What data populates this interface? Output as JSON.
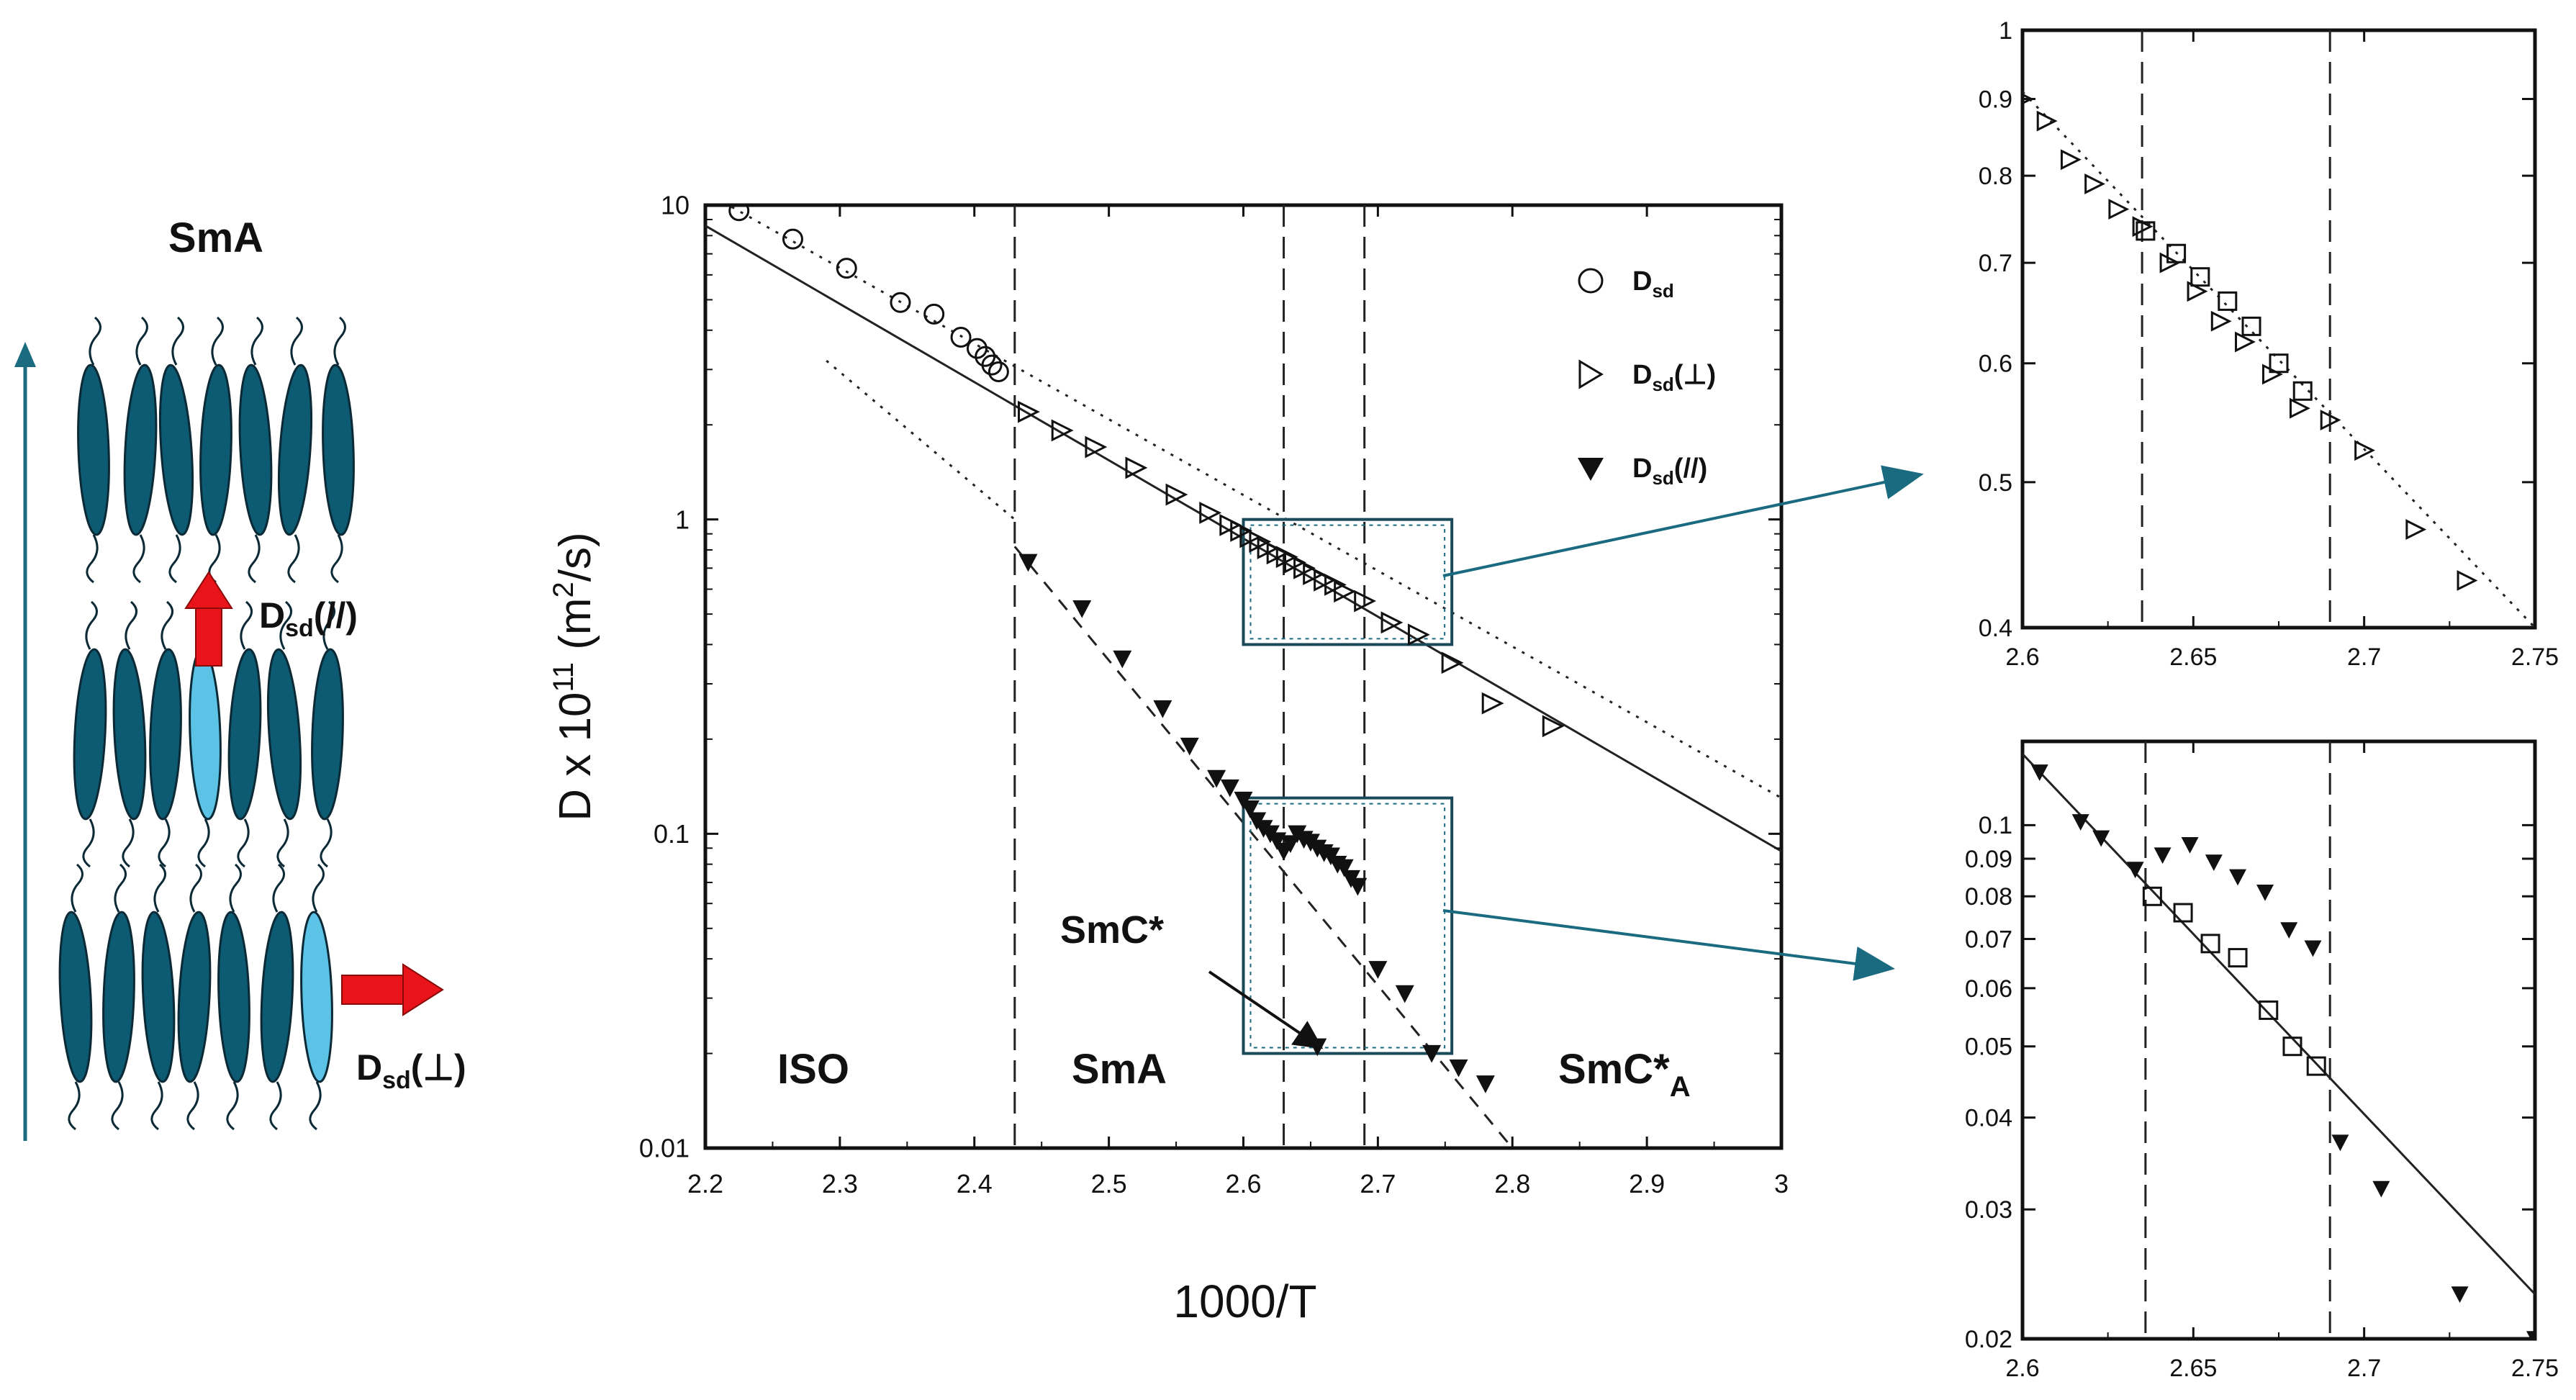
{
  "schematic": {
    "title": "SmA",
    "label_parallel_main": "D",
    "label_parallel_sub": "sd",
    "label_parallel_tail": "(//)",
    "label_perp_main": "D",
    "label_perp_sub": "sd",
    "label_perp_tail": "(⊥)",
    "molecule_color": "#0d5a73",
    "highlight_color": "#5cc3e6",
    "arrow_color": "#e8141a"
  },
  "chart_data": [
    {
      "type": "scatter",
      "id": "main",
      "xlabel": "1000/T",
      "ylabel": "D x 10",
      "ylabel_sup": "11",
      "ylabel_tail": " (m",
      "ylabel_sup2": "2",
      "ylabel_end": "/s)",
      "xlim": [
        2.2,
        3.0
      ],
      "ylim": [
        0.01,
        10
      ],
      "yscale": "log",
      "x_ticks": [
        "2.2",
        "2.3",
        "2.4",
        "2.5",
        "2.6",
        "2.7",
        "2.8",
        "2.9",
        "3"
      ],
      "y_ticks": [
        "0.01",
        "0.1",
        "1",
        "10"
      ],
      "phase_boundaries": [
        2.43,
        2.63,
        2.69
      ],
      "phase_labels": [
        "ISO",
        "SmA",
        "SmC*",
        "SmC*A"
      ],
      "annotation": "SmC*",
      "legend": [
        {
          "marker": "circle",
          "main": "D",
          "sub": "sd",
          "tail": ""
        },
        {
          "marker": "triangle-right",
          "main": "D",
          "sub": "sd",
          "tail": "(⊥)"
        },
        {
          "marker": "triangle-down-filled",
          "main": "D",
          "sub": "sd",
          "tail": "(//)"
        }
      ],
      "legend_position": "top-right",
      "series": [
        {
          "marker": "circle",
          "x": [
            2.225,
            2.265,
            2.305,
            2.345,
            2.37,
            2.39,
            2.402,
            2.408,
            2.413,
            2.418
          ],
          "y": [
            9.6,
            7.8,
            6.3,
            4.9,
            4.5,
            3.8,
            3.5,
            3.3,
            3.1,
            2.95
          ]
        },
        {
          "marker": "triangle-right",
          "x": [
            2.44,
            2.465,
            2.49,
            2.52,
            2.55,
            2.575,
            2.59,
            2.598,
            2.605,
            2.612,
            2.618,
            2.625,
            2.632,
            2.638,
            2.645,
            2.652,
            2.66,
            2.668,
            2.675,
            2.69,
            2.71,
            2.73,
            2.755,
            2.785,
            2.83
          ],
          "y": [
            2.2,
            1.92,
            1.7,
            1.46,
            1.2,
            1.05,
            0.96,
            0.92,
            0.88,
            0.85,
            0.81,
            0.78,
            0.76,
            0.73,
            0.7,
            0.67,
            0.64,
            0.62,
            0.59,
            0.55,
            0.47,
            0.43,
            0.35,
            0.26,
            0.22
          ]
        },
        {
          "marker": "triangle-down-filled",
          "x": [
            2.44,
            2.48,
            2.51,
            2.54,
            2.56,
            2.58,
            2.59,
            2.6,
            2.605,
            2.61,
            2.615,
            2.62,
            2.625,
            2.63,
            2.635,
            2.64,
            2.645,
            2.65,
            2.655,
            2.66,
            2.665,
            2.67,
            2.675,
            2.68,
            2.685,
            2.7,
            2.72,
            2.74,
            2.76,
            2.78
          ],
          "y": [
            0.73,
            0.52,
            0.36,
            0.25,
            0.19,
            0.15,
            0.14,
            0.128,
            0.12,
            0.11,
            0.104,
            0.1,
            0.095,
            0.088,
            0.093,
            0.1,
            0.096,
            0.094,
            0.09,
            0.087,
            0.085,
            0.08,
            0.078,
            0.072,
            0.068,
            0.037,
            0.031,
            0.02,
            0.018,
            0.016
          ]
        },
        {
          "marker": "triangle-down-filled",
          "x": [
            2.655
          ],
          "y": [
            0.021
          ]
        }
      ],
      "fit_lines": [
        {
          "style": "solid",
          "from": [
            2.2,
            8.6
          ],
          "to": [
            3.0,
            0.088
          ]
        },
        {
          "style": "dotted",
          "from": [
            2.2,
            11.0
          ],
          "to": [
            3.0,
            0.13
          ]
        },
        {
          "style": "dotted",
          "from": [
            2.29,
            3.2
          ],
          "to": [
            2.43,
            1.0
          ]
        },
        {
          "style": "dashed",
          "from": [
            2.43,
            0.82
          ],
          "to": [
            2.8,
            0.01
          ]
        }
      ],
      "zoom_boxes": [
        {
          "x": [
            2.6,
            2.755
          ],
          "y": [
            0.4,
            1.0
          ]
        },
        {
          "x": [
            2.6,
            2.755
          ],
          "y": [
            0.02,
            0.13
          ]
        }
      ]
    },
    {
      "type": "scatter",
      "id": "inset-top",
      "xlim": [
        2.6,
        2.75
      ],
      "ylim": [
        0.4,
        1.0
      ],
      "yscale": "log",
      "x_ticks": [
        "2.6",
        "2.65",
        "2.7",
        "2.75"
      ],
      "y_ticks": [
        "0.4",
        "0.5",
        "0.6",
        "0.7",
        "0.8",
        "0.9",
        "1"
      ],
      "phase_boundaries": [
        2.635,
        2.69
      ],
      "series": [
        {
          "marker": "triangle-right",
          "x": [
            2.6,
            2.607,
            2.614,
            2.621,
            2.628,
            2.635,
            2.643,
            2.651,
            2.658,
            2.665,
            2.673,
            2.681,
            2.69,
            2.7,
            2.715,
            2.73
          ],
          "y": [
            0.9,
            0.87,
            0.82,
            0.79,
            0.76,
            0.74,
            0.7,
            0.67,
            0.64,
            0.62,
            0.59,
            0.56,
            0.55,
            0.525,
            0.465,
            0.43
          ]
        },
        {
          "marker": "square",
          "x": [
            2.636,
            2.645,
            2.652,
            2.66,
            2.667,
            2.675,
            2.682
          ],
          "y": [
            0.735,
            0.71,
            0.685,
            0.66,
            0.635,
            0.6,
            0.575
          ]
        }
      ],
      "fit_lines": [
        {
          "style": "dotted",
          "from": [
            2.6,
            0.91
          ],
          "to": [
            2.75,
            0.4
          ]
        }
      ]
    },
    {
      "type": "scatter",
      "id": "inset-bottom",
      "xlim": [
        2.6,
        2.75
      ],
      "ylim": [
        0.02,
        0.13
      ],
      "yscale": "log",
      "x_ticks": [
        "2.6",
        "2.65",
        "2.7",
        "2.75"
      ],
      "y_ticks": [
        "0.02",
        "0.03",
        "0.04",
        "0.05",
        "0.06",
        "0.07",
        "0.08",
        "0.09",
        "0.1"
      ],
      "phase_boundaries": [
        2.636,
        2.69
      ],
      "series": [
        {
          "marker": "triangle-down-filled",
          "x": [
            2.605,
            2.617,
            2.623,
            2.633,
            2.641,
            2.649,
            2.656,
            2.663,
            2.671,
            2.678,
            2.685,
            2.693,
            2.705,
            2.728,
            2.75
          ],
          "y": [
            0.118,
            0.101,
            0.096,
            0.087,
            0.091,
            0.094,
            0.089,
            0.085,
            0.081,
            0.072,
            0.068,
            0.037,
            0.032,
            0.023,
            0.02
          ]
        },
        {
          "marker": "square",
          "x": [
            2.638,
            2.647,
            2.655,
            2.663,
            2.672,
            2.679,
            2.686
          ],
          "y": [
            0.08,
            0.076,
            0.069,
            0.066,
            0.056,
            0.05,
            0.047
          ]
        }
      ],
      "fit_lines": [
        {
          "style": "solid",
          "from": [
            2.6,
            0.125
          ],
          "to": [
            2.75,
            0.023
          ]
        }
      ]
    }
  ]
}
